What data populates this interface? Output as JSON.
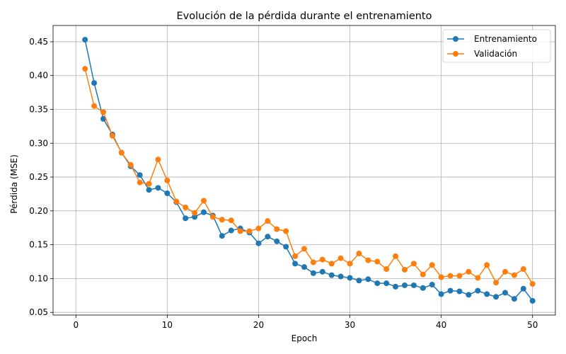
{
  "chart_data": {
    "type": "line",
    "title": "Evolución de la pérdida durante el entrenamiento",
    "xlabel": "Epoch",
    "ylabel": "Pérdida (MSE)",
    "xlim": [
      -2.5,
      52.5
    ],
    "ylim": [
      0.046,
      0.474
    ],
    "xticks": [
      0,
      10,
      20,
      30,
      40,
      50
    ],
    "yticks": [
      0.05,
      0.1,
      0.15,
      0.2,
      0.25,
      0.3,
      0.35,
      0.4,
      0.45
    ],
    "grid": true,
    "legend_position": "top-right",
    "x": [
      1,
      2,
      3,
      4,
      5,
      6,
      7,
      8,
      9,
      10,
      11,
      12,
      13,
      14,
      15,
      16,
      17,
      18,
      19,
      20,
      21,
      22,
      23,
      24,
      25,
      26,
      27,
      28,
      29,
      30,
      31,
      32,
      33,
      34,
      35,
      36,
      37,
      38,
      39,
      40,
      41,
      42,
      43,
      44,
      45,
      46,
      47,
      48,
      49,
      50
    ],
    "series": [
      {
        "name": "Entrenamiento",
        "color": "#1f77b4",
        "values": [
          0.453,
          0.389,
          0.336,
          0.313,
          0.286,
          0.266,
          0.253,
          0.231,
          0.234,
          0.226,
          0.213,
          0.189,
          0.191,
          0.198,
          0.193,
          0.163,
          0.171,
          0.174,
          0.168,
          0.152,
          0.162,
          0.155,
          0.147,
          0.122,
          0.117,
          0.108,
          0.11,
          0.105,
          0.103,
          0.101,
          0.097,
          0.099,
          0.093,
          0.093,
          0.088,
          0.09,
          0.09,
          0.086,
          0.091,
          0.077,
          0.082,
          0.081,
          0.076,
          0.082,
          0.077,
          0.073,
          0.079,
          0.07,
          0.085,
          0.067
        ]
      },
      {
        "name": "Validación",
        "color": "#ff7f0e",
        "values": [
          0.41,
          0.355,
          0.346,
          0.311,
          0.286,
          0.268,
          0.242,
          0.24,
          0.276,
          0.245,
          0.214,
          0.205,
          0.197,
          0.215,
          0.191,
          0.187,
          0.186,
          0.17,
          0.17,
          0.174,
          0.185,
          0.173,
          0.17,
          0.133,
          0.144,
          0.124,
          0.128,
          0.122,
          0.13,
          0.122,
          0.137,
          0.127,
          0.125,
          0.114,
          0.133,
          0.113,
          0.122,
          0.106,
          0.12,
          0.102,
          0.104,
          0.104,
          0.11,
          0.101,
          0.12,
          0.094,
          0.11,
          0.105,
          0.114,
          0.092
        ]
      }
    ]
  }
}
